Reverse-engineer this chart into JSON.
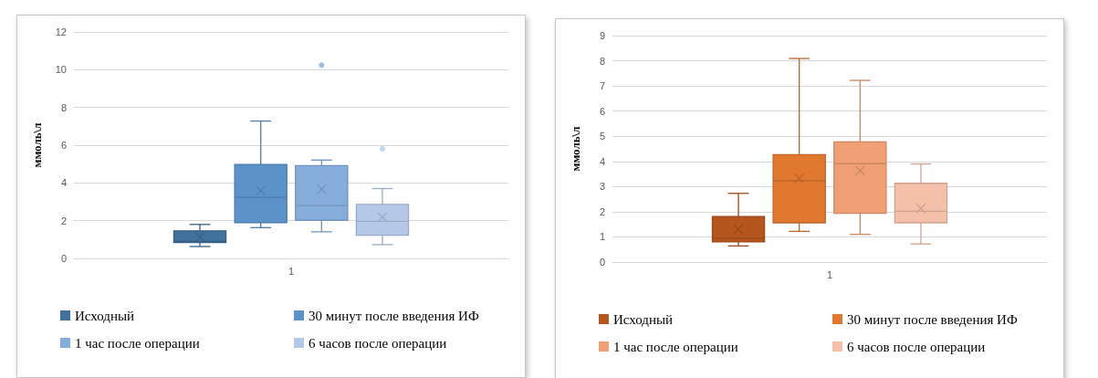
{
  "chart_data": [
    {
      "type": "box",
      "categories": [
        "1"
      ],
      "ylabel": "ммоль\\л",
      "ylim": [
        0,
        12
      ],
      "yticks": [
        0,
        2,
        4,
        6,
        8,
        10,
        12
      ],
      "grid": "y",
      "legend": "bottom",
      "series": [
        {
          "name": "Исходный",
          "color": "#41719c",
          "boxes": [
            {
              "low": 0.63,
              "q1": 0.84,
              "median": 0.9,
              "q3": 1.46,
              "high": 1.8,
              "mean": 1.13
            }
          ]
        },
        {
          "name": "30 минут после введения ИФ",
          "color": "#5b93c9",
          "boxes": [
            {
              "low": 1.63,
              "q1": 1.9,
              "median": 3.24,
              "q3": 4.98,
              "high": 7.28,
              "mean": 3.6
            }
          ]
        },
        {
          "name": "1 час после операции",
          "color": "#86aedc",
          "boxes": [
            {
              "low": 1.41,
              "q1": 2.02,
              "median": 2.8,
              "q3": 4.92,
              "high": 5.21,
              "mean": 3.67,
              "outliers": [
                10.24
              ]
            }
          ]
        },
        {
          "name": "6 часов после операции",
          "color": "#b4c9e8",
          "boxes": [
            {
              "low": 0.73,
              "q1": 1.23,
              "median": 1.97,
              "q3": 2.86,
              "high": 3.7,
              "mean": 2.18,
              "outliers": [
                5.81
              ]
            }
          ]
        }
      ]
    },
    {
      "type": "box",
      "categories": [
        "1"
      ],
      "ylabel": "ммоль\\л",
      "ylim": [
        0,
        9
      ],
      "yticks": [
        0,
        1,
        2,
        3,
        4,
        5,
        6,
        7,
        8,
        9
      ],
      "grid": "y",
      "legend": "bottom",
      "series": [
        {
          "name": "Исходный",
          "color": "#b5561f",
          "boxes": [
            {
              "low": 0.64,
              "q1": 0.8,
              "median": 0.95,
              "q3": 1.81,
              "high": 2.73,
              "mean": 1.3
            }
          ]
        },
        {
          "name": "30 минут после введения ИФ",
          "color": "#e0782f",
          "boxes": [
            {
              "low": 1.22,
              "q1": 1.56,
              "median": 3.23,
              "q3": 4.27,
              "high": 8.09,
              "mean": 3.32
            }
          ]
        },
        {
          "name": "1 час после операции",
          "color": "#f0a074",
          "boxes": [
            {
              "low": 1.1,
              "q1": 1.94,
              "median": 3.91,
              "q3": 4.78,
              "high": 7.22,
              "mean": 3.63
            }
          ]
        },
        {
          "name": "6 часов после операции",
          "color": "#f5c0aa",
          "boxes": [
            {
              "low": 0.72,
              "q1": 1.56,
              "median": 2.02,
              "q3": 3.13,
              "high": 3.9,
              "mean": 2.13
            }
          ]
        }
      ]
    }
  ]
}
